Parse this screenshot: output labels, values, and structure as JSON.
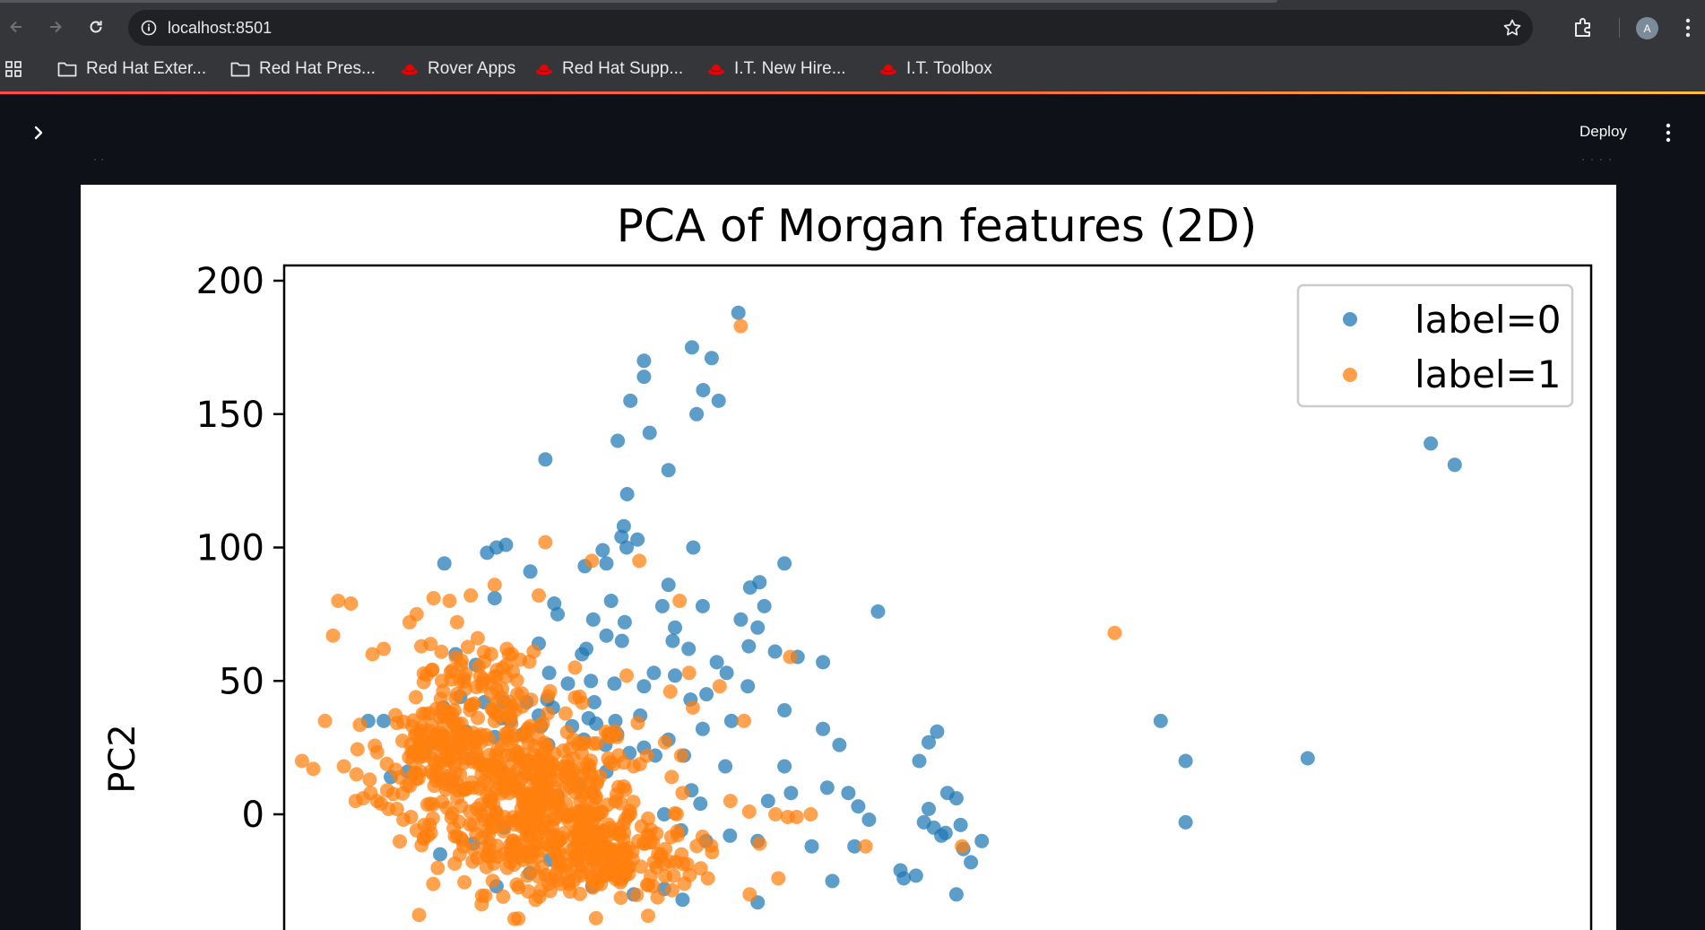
{
  "browser": {
    "url": "localhost:8501",
    "bookmarks": [
      {
        "label": "Red Hat Exter...",
        "icon": "folder-icon"
      },
      {
        "label": "Red Hat Pres...",
        "icon": "folder-icon"
      },
      {
        "label": "Rover Apps",
        "icon": "redhat-icon"
      },
      {
        "label": "Red Hat Supp...",
        "icon": "redhat-icon"
      },
      {
        "label": "I.T. New Hire...",
        "icon": "redhat-icon"
      },
      {
        "label": "I.T. Toolbox",
        "icon": "redhat-icon"
      }
    ],
    "avatar_letter": "A"
  },
  "app": {
    "deploy_label": "Deploy"
  },
  "chart_data": {
    "type": "scatter",
    "title": "PCA of Morgan features (2D)",
    "xlabel": "",
    "ylabel": "PC2",
    "ylim": [
      -35,
      205
    ],
    "yticks": [
      0,
      50,
      100,
      150,
      200
    ],
    "grid": false,
    "legend_position": "top-right",
    "series": [
      {
        "name": "label=0",
        "color": "#1f77b4",
        "points": [
          [
            188.5,
            188
          ],
          [
            178.6,
            175
          ],
          [
            182.8,
            171
          ],
          [
            168.4,
            170
          ],
          [
            168.4,
            164
          ],
          [
            181.0,
            159
          ],
          [
            165.5,
            155
          ],
          [
            184.3,
            155
          ],
          [
            179.6,
            150
          ],
          [
            169.6,
            143
          ],
          [
            162.8,
            140
          ],
          [
            147.4,
            133
          ],
          [
            173.6,
            129
          ],
          [
            164.8,
            120
          ],
          [
            164.1,
            108
          ],
          [
            163.6,
            104
          ],
          [
            167.0,
            103
          ],
          [
            164.7,
            100
          ],
          [
            159.6,
            99
          ],
          [
            160.4,
            94
          ],
          [
            178.9,
            100
          ],
          [
            135.0,
            98
          ],
          [
            137.0,
            100
          ],
          [
            139.0,
            101
          ],
          [
            155.8,
            93
          ],
          [
            198.3,
            94
          ],
          [
            173.6,
            86
          ],
          [
            193.0,
            87
          ],
          [
            191.0,
            85
          ],
          [
            144.2,
            91
          ],
          [
            125.9,
            94
          ],
          [
            136.6,
            81
          ],
          [
            149.3,
            79
          ],
          [
            161.4,
            80
          ],
          [
            172.3,
            78
          ],
          [
            180.9,
            78
          ],
          [
            194.0,
            78
          ],
          [
            150.0,
            75
          ],
          [
            157.6,
            73
          ],
          [
            164.3,
            72
          ],
          [
            189.0,
            73
          ],
          [
            192.6,
            70
          ],
          [
            175.0,
            70
          ],
          [
            163.7,
            65
          ],
          [
            160.4,
            67
          ],
          [
            156.1,
            62
          ],
          [
            155.2,
            60
          ],
          [
            174.5,
            65
          ],
          [
            177.9,
            62
          ],
          [
            190.7,
            63
          ],
          [
            196.3,
            61
          ],
          [
            146.0,
            64
          ],
          [
            128.3,
            60
          ],
          [
            132.6,
            56
          ],
          [
            183.9,
            57
          ],
          [
            201.1,
            59
          ],
          [
            206.5,
            57
          ],
          [
            186.0,
            53
          ],
          [
            175.0,
            52
          ],
          [
            170.5,
            53
          ],
          [
            148.2,
            53
          ],
          [
            152.2,
            49
          ],
          [
            157.1,
            50
          ],
          [
            162.1,
            49
          ],
          [
            168.4,
            48
          ],
          [
            190.5,
            48
          ],
          [
            178.3,
            43
          ],
          [
            181.7,
            45
          ],
          [
            157.8,
            42
          ],
          [
            149.0,
            40
          ],
          [
            147.8,
            43
          ],
          [
            143.4,
            42
          ],
          [
            138.6,
            42
          ],
          [
            125.7,
            40
          ],
          [
            129.3,
            44
          ],
          [
            134.4,
            42
          ],
          [
            140.0,
            35
          ],
          [
            146.5,
            33
          ],
          [
            156.6,
            36
          ],
          [
            162.3,
            35
          ],
          [
            167.6,
            37
          ],
          [
            173.6,
            28
          ],
          [
            180.9,
            32
          ],
          [
            187.0,
            35
          ],
          [
            198.3,
            39
          ],
          [
            206.5,
            32
          ],
          [
            210.0,
            26
          ],
          [
            170.8,
            22
          ],
          [
            176.9,
            22
          ],
          [
            185.7,
            18
          ],
          [
            198.3,
            18
          ],
          [
            194.8,
            5
          ],
          [
            199.7,
            8
          ],
          [
            207.4,
            10
          ],
          [
            211.9,
            8
          ],
          [
            214.0,
            3
          ],
          [
            216.3,
            -2
          ],
          [
            180.4,
            4
          ],
          [
            178.5,
            9
          ],
          [
            172.7,
            0
          ],
          [
            176.3,
            -6
          ],
          [
            181.6,
            -10
          ],
          [
            186.7,
            -8
          ],
          [
            192.6,
            -10
          ],
          [
            204.1,
            -12
          ],
          [
            213.2,
            -12
          ],
          [
            223.0,
            -21
          ],
          [
            160.4,
            16
          ],
          [
            154.6,
            11
          ],
          [
            150.0,
            7
          ],
          [
            144.9,
            0
          ],
          [
            138.6,
            -5
          ],
          [
            132.0,
            -11
          ],
          [
            125.0,
            -15
          ],
          [
            148.4,
            -17
          ],
          [
            144.1,
            -22
          ],
          [
            137.0,
            -27
          ],
          [
            157.4,
            -27
          ],
          [
            166.2,
            -30
          ],
          [
            172.7,
            -28
          ],
          [
            176.6,
            -32
          ],
          [
            192.6,
            -33
          ],
          [
            208.5,
            -25
          ],
          [
            223.7,
            -24
          ],
          [
            234.9,
            -30
          ],
          [
            165.3,
            23
          ],
          [
            168.4,
            25
          ],
          [
            160.2,
            26
          ],
          [
            155.6,
            28
          ],
          [
            148.0,
            26
          ],
          [
            142.6,
            30
          ],
          [
            136.6,
            29
          ],
          [
            131.6,
            21
          ],
          [
            128.8,
            25
          ],
          [
            123.4,
            27
          ],
          [
            130.5,
            31
          ],
          [
            138.1,
            36
          ],
          [
            146.0,
            37
          ],
          [
            153.1,
            33
          ],
          [
            158.2,
            34
          ],
          [
            162.7,
            30
          ],
          [
            121.6,
            23
          ],
          [
            118.1,
            16
          ],
          [
            114.5,
            14
          ],
          [
            113.0,
            35
          ],
          [
            109.7,
            35
          ],
          [
            230.8,
            31
          ],
          [
            229.0,
            27
          ],
          [
            227.0,
            20
          ],
          [
            233.0,
            8
          ],
          [
            234.9,
            6
          ],
          [
            229.0,
            2
          ],
          [
            228.0,
            -3
          ],
          [
            230.1,
            -5
          ],
          [
            232.6,
            -7
          ],
          [
            235.8,
            -4
          ],
          [
            236.4,
            -13
          ],
          [
            240.3,
            -10
          ],
          [
            226.3,
            -23
          ],
          [
            231.7,
            -8
          ],
          [
            238.0,
            -18
          ],
          [
            218.2,
            76
          ],
          [
            278.4,
            35
          ],
          [
            283.7,
            20
          ],
          [
            283.7,
            -3
          ],
          [
            309.7,
            21
          ],
          [
            335.9,
            139
          ],
          [
            341.0,
            131
          ]
        ]
      },
      {
        "name": "label=1",
        "color": "#ff7f0e",
        "points": [
          [
            189.0,
            183
          ],
          [
            147.4,
            102
          ],
          [
            157.3,
            95
          ],
          [
            167.4,
            95
          ],
          [
            176.0,
            80
          ],
          [
            146.0,
            82
          ],
          [
            136.6,
            86
          ],
          [
            131.5,
            82
          ],
          [
            127.0,
            80
          ],
          [
            123.6,
            81
          ],
          [
            120.0,
            75
          ],
          [
            118.5,
            72
          ],
          [
            106.0,
            79
          ],
          [
            103.3,
            80
          ],
          [
            102.2,
            67
          ],
          [
            128.6,
            72
          ],
          [
            133.0,
            66
          ],
          [
            139.2,
            62
          ],
          [
            144.9,
            61
          ],
          [
            121.0,
            63
          ],
          [
            113.0,
            62
          ],
          [
            110.6,
            60
          ],
          [
            153.7,
            55
          ],
          [
            164.7,
            52
          ],
          [
            178.0,
            53
          ],
          [
            199.5,
            59
          ],
          [
            184.5,
            48
          ],
          [
            174.0,
            46
          ],
          [
            178.8,
            40
          ],
          [
            189.7,
            35
          ],
          [
            100.5,
            35
          ],
          [
            95.6,
            20
          ],
          [
            98.0,
            17
          ],
          [
            172.9,
            27
          ],
          [
            176.3,
            22
          ],
          [
            169.0,
            22
          ],
          [
            166.2,
            18
          ],
          [
            174.3,
            14
          ],
          [
            176.6,
            8
          ],
          [
            186.8,
            5
          ],
          [
            190.8,
            1
          ],
          [
            196.4,
            0
          ],
          [
            199.0,
            -1
          ],
          [
            193.0,
            -11
          ],
          [
            197.0,
            -24
          ],
          [
            182.0,
            -24
          ],
          [
            177.0,
            -26
          ],
          [
            190.9,
            -30
          ],
          [
            236.1,
            -12
          ],
          [
            268.6,
            68
          ],
          [
            215.6,
            -12
          ],
          [
            200.9,
            -1
          ],
          [
            203.9,
            0
          ],
          [
            104.5,
            18
          ],
          [
            107.2,
            15
          ],
          [
            110.0,
            13
          ],
          [
            110.2,
            8
          ],
          [
            112.4,
            4
          ],
          [
            114.0,
            2
          ],
          [
            117.2,
            -2
          ],
          [
            120.0,
            -6
          ],
          [
            122.4,
            -8
          ],
          [
            107.0,
            5
          ],
          [
            108.6,
            6
          ],
          [
            111.6,
            5
          ],
          [
            115.8,
            2
          ],
          [
            118.8,
            -1
          ],
          [
            121.6,
            -4
          ]
        ],
        "dense_clusters": [
          {
            "center": [
              145,
              5
            ],
            "spread": [
              18,
              28
            ],
            "count": 450
          },
          {
            "center": [
              125,
              25
            ],
            "spread": [
              10,
              14
            ],
            "count": 140
          },
          {
            "center": [
              160,
              -15
            ],
            "spread": [
              16,
              14
            ],
            "count": 180
          },
          {
            "center": [
              132,
              50
            ],
            "spread": [
              9,
              12
            ],
            "count": 60
          }
        ]
      }
    ]
  }
}
